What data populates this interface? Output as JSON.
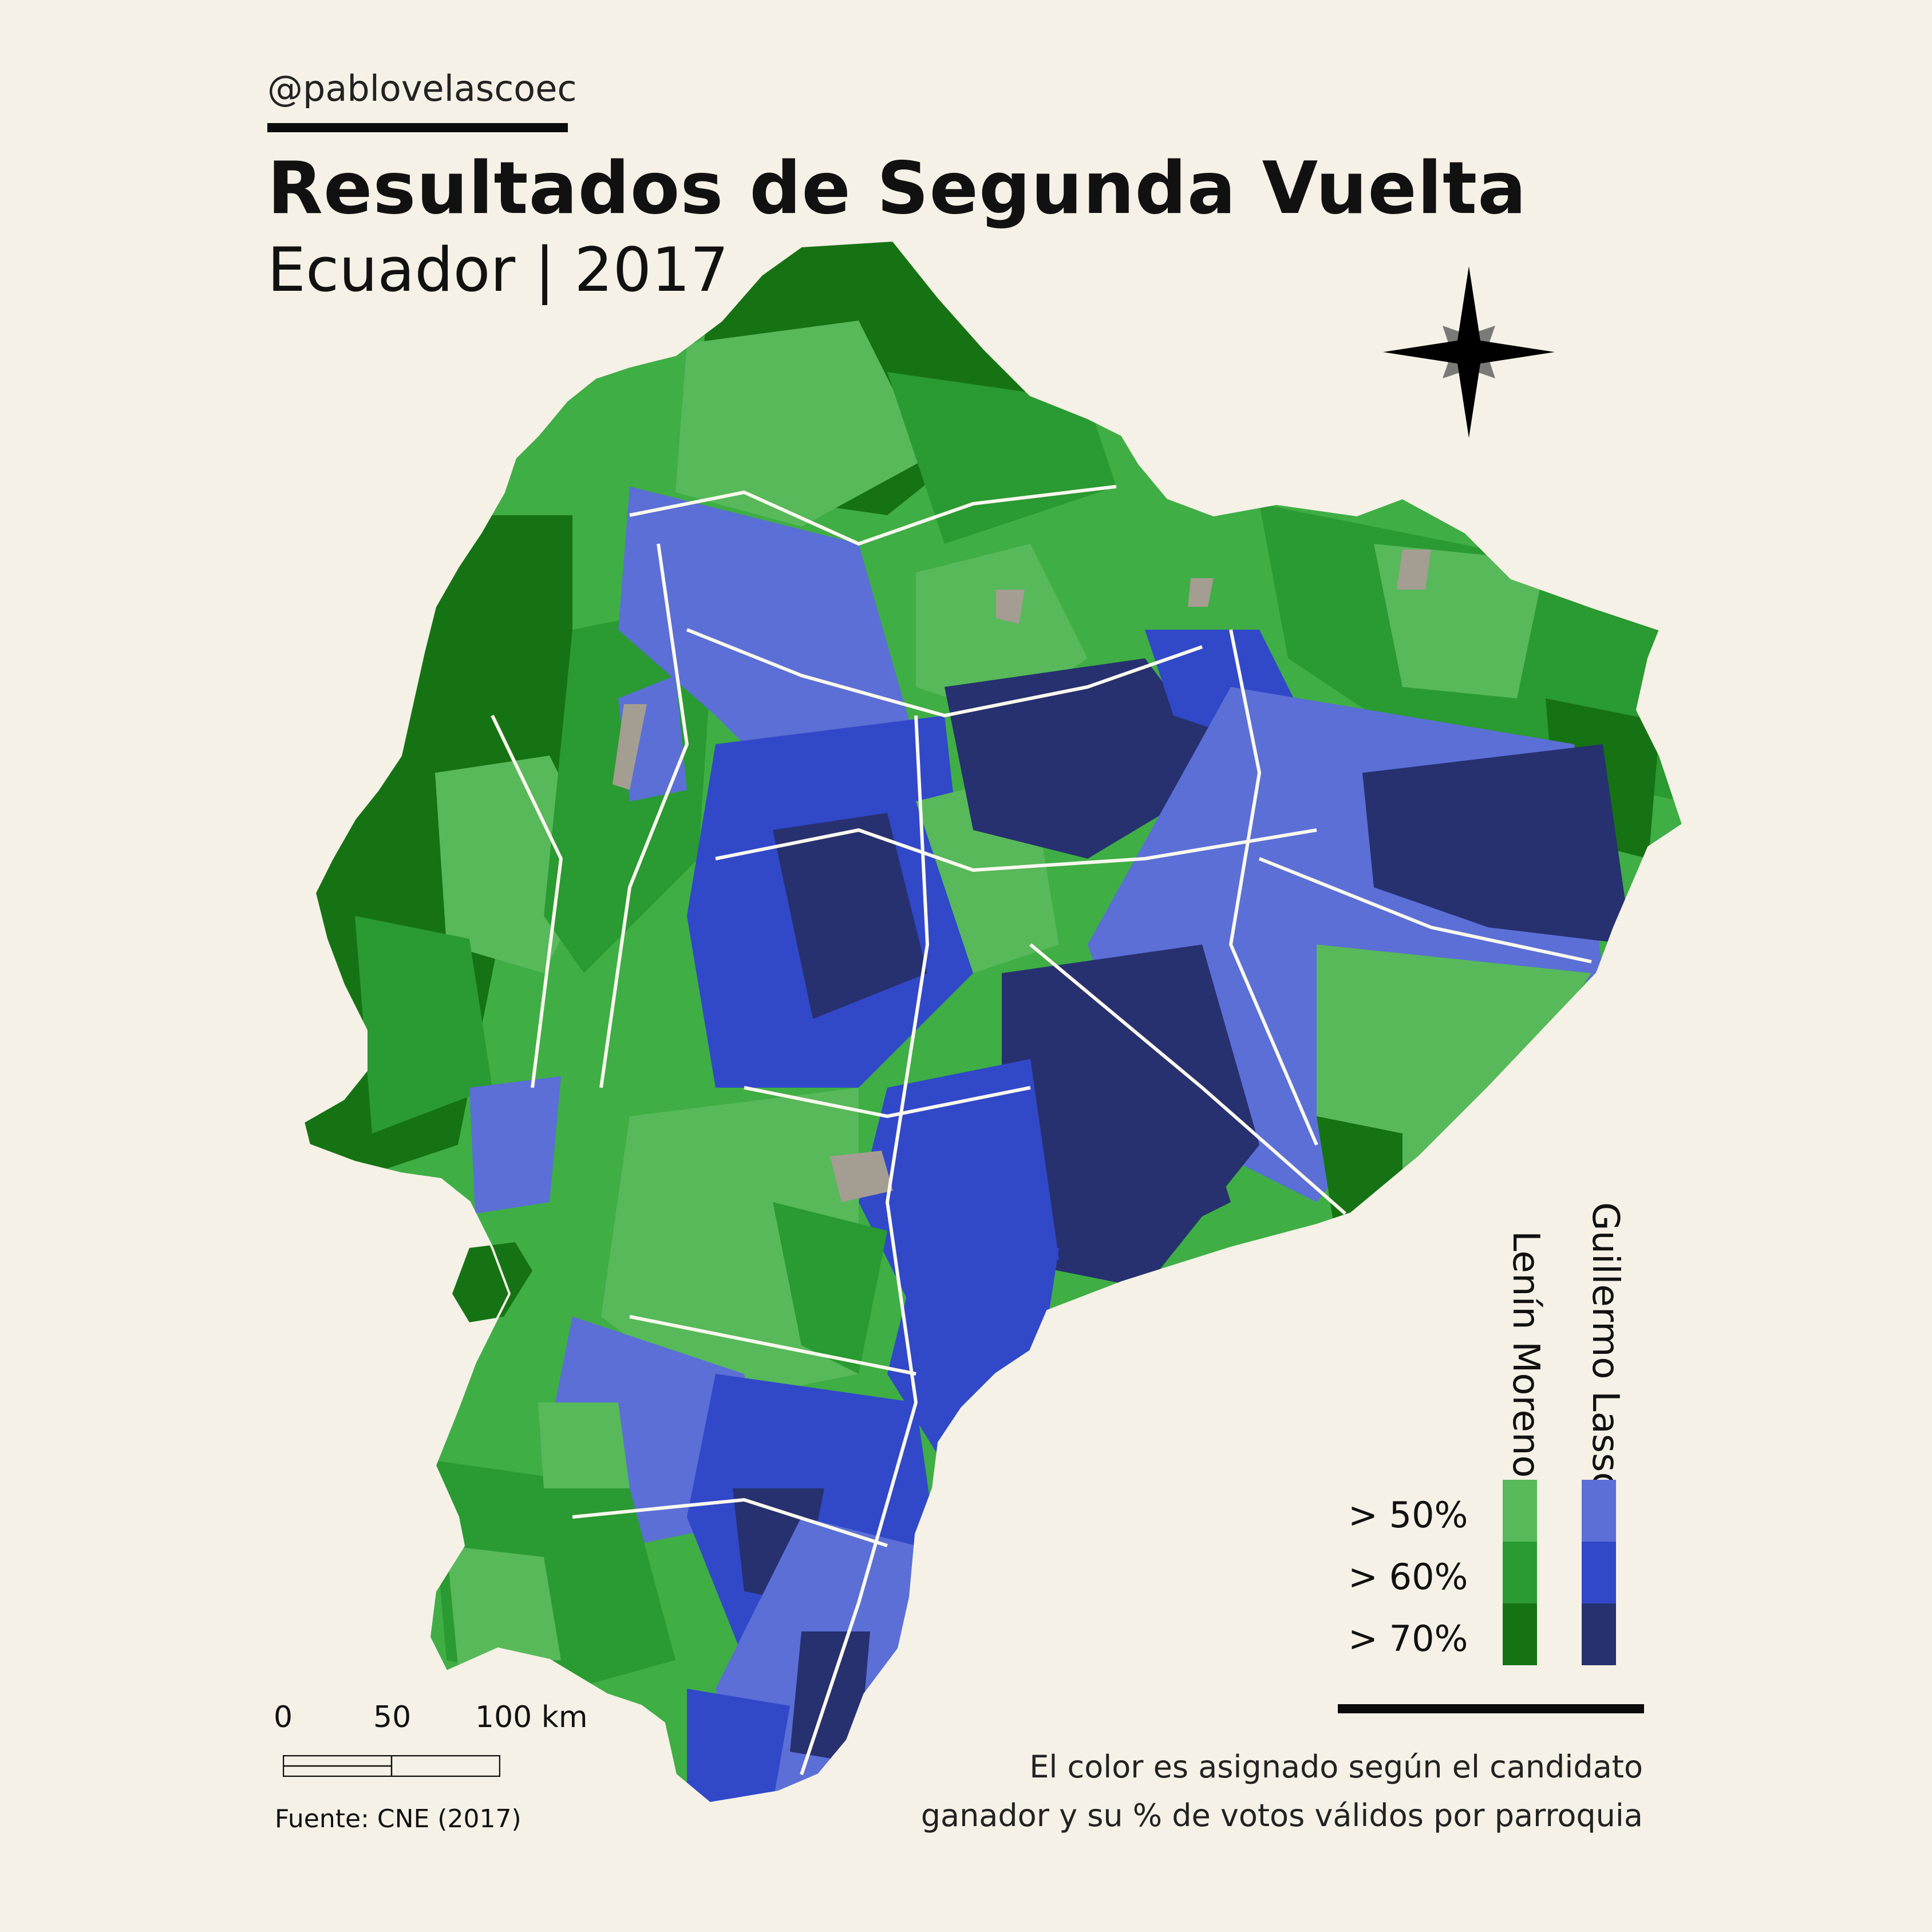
{
  "header": {
    "handle": "@pablovelascoec",
    "title": "Resultados de Segunda Vuelta",
    "subtitle": "Ecuador | 2017"
  },
  "legend": {
    "candidate_a": "Lenín Moreno",
    "candidate_b": "Guillermo Lasso",
    "thresholds": [
      "> 50%",
      "> 60%",
      "> 70%"
    ],
    "colors_a": [
      "#57b95a",
      "#2a9a32",
      "#167314"
    ],
    "colors_b": [
      "#5b6fd6",
      "#3148c9",
      "#27316f"
    ],
    "no_data_color": "#a49d92"
  },
  "note": {
    "line1": "El color es asignado según el candidato",
    "line2": "ganador y su % de votos válidos por parroquia"
  },
  "scale": {
    "ticks": [
      "0",
      "50",
      "100 km"
    ]
  },
  "source": "Fuente: CNE (2017)",
  "compass": {
    "icon": "compass-rose-icon"
  }
}
